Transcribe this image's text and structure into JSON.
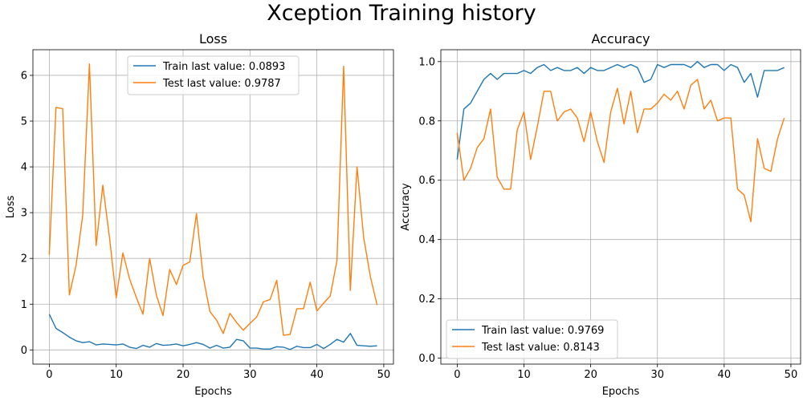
{
  "title": "Xception Training history",
  "chart_data": [
    {
      "type": "line",
      "title": "Loss",
      "xlabel": "Epochs",
      "ylabel": "Loss",
      "xlim": [
        -2.45,
        51.45
      ],
      "ylim": [
        -0.31,
        6.56
      ],
      "xticks": [
        0,
        10,
        20,
        30,
        40,
        50
      ],
      "yticks": [
        0,
        1,
        2,
        3,
        4,
        5,
        6
      ],
      "grid": true,
      "legend": "upper center",
      "x": [
        0,
        1,
        2,
        3,
        4,
        5,
        6,
        7,
        8,
        9,
        10,
        11,
        12,
        13,
        14,
        15,
        16,
        17,
        18,
        19,
        20,
        21,
        22,
        23,
        24,
        25,
        26,
        27,
        28,
        29,
        30,
        31,
        32,
        33,
        34,
        35,
        36,
        37,
        38,
        39,
        40,
        41,
        42,
        43,
        44,
        45,
        46,
        47,
        48,
        49
      ],
      "series": [
        {
          "name": "Train last value: 0.0893",
          "color": "#1f77b4",
          "values": [
            0.78,
            0.47,
            0.38,
            0.28,
            0.2,
            0.16,
            0.18,
            0.11,
            0.13,
            0.12,
            0.11,
            0.13,
            0.06,
            0.03,
            0.1,
            0.06,
            0.14,
            0.1,
            0.11,
            0.13,
            0.09,
            0.12,
            0.16,
            0.12,
            0.04,
            0.1,
            0.04,
            0.06,
            0.23,
            0.2,
            0.04,
            0.04,
            0.02,
            0.02,
            0.07,
            0.06,
            0.01,
            0.08,
            0.05,
            0.05,
            0.12,
            0.03,
            0.12,
            0.23,
            0.17,
            0.36,
            0.1,
            0.09,
            0.08,
            0.09
          ]
        },
        {
          "name": "Test last value: 0.9787",
          "color": "#ff7f0e",
          "values": [
            2.08,
            5.3,
            5.27,
            1.2,
            1.85,
            2.95,
            6.25,
            2.28,
            3.6,
            2.45,
            1.14,
            2.12,
            1.55,
            1.15,
            0.78,
            2.0,
            1.2,
            0.75,
            1.76,
            1.43,
            1.85,
            1.92,
            2.98,
            1.6,
            0.84,
            0.65,
            0.36,
            0.8,
            0.6,
            0.43,
            0.58,
            0.72,
            1.05,
            1.1,
            1.52,
            0.32,
            0.34,
            0.9,
            0.9,
            1.48,
            0.85,
            1.02,
            1.18,
            1.95,
            6.2,
            1.3,
            4.0,
            2.45,
            1.6,
            0.98
          ]
        }
      ]
    },
    {
      "type": "line",
      "title": "Accuracy",
      "xlabel": "Epochs",
      "ylabel": "Accuracy",
      "xlim": [
        -2.45,
        51.45
      ],
      "ylim": [
        -0.02,
        1.04
      ],
      "xticks": [
        0,
        10,
        20,
        30,
        40,
        50
      ],
      "yticks": [
        0.0,
        0.2,
        0.4,
        0.6,
        0.8,
        1.0
      ],
      "grid": true,
      "legend": "lower left",
      "x": [
        0,
        1,
        2,
        3,
        4,
        5,
        6,
        7,
        8,
        9,
        10,
        11,
        12,
        13,
        14,
        15,
        16,
        17,
        18,
        19,
        20,
        21,
        22,
        23,
        24,
        25,
        26,
        27,
        28,
        29,
        30,
        31,
        32,
        33,
        34,
        35,
        36,
        37,
        38,
        39,
        40,
        41,
        42,
        43,
        44,
        45,
        46,
        47,
        48,
        49
      ],
      "series": [
        {
          "name": "Train last value: 0.9769",
          "color": "#1f77b4",
          "values": [
            0.67,
            0.84,
            0.86,
            0.9,
            0.94,
            0.96,
            0.94,
            0.96,
            0.96,
            0.96,
            0.97,
            0.96,
            0.98,
            0.99,
            0.97,
            0.98,
            0.97,
            0.97,
            0.98,
            0.96,
            0.98,
            0.97,
            0.97,
            0.98,
            0.99,
            0.98,
            0.99,
            0.98,
            0.93,
            0.94,
            0.99,
            0.98,
            0.99,
            0.99,
            0.99,
            0.98,
            1.0,
            0.98,
            0.99,
            0.99,
            0.97,
            0.99,
            0.98,
            0.93,
            0.96,
            0.88,
            0.97,
            0.97,
            0.97,
            0.98
          ]
        },
        {
          "name": "Test last value: 0.8143",
          "color": "#ff7f0e",
          "values": [
            0.76,
            0.6,
            0.64,
            0.71,
            0.74,
            0.84,
            0.61,
            0.57,
            0.57,
            0.77,
            0.83,
            0.67,
            0.78,
            0.9,
            0.9,
            0.8,
            0.83,
            0.84,
            0.81,
            0.73,
            0.83,
            0.73,
            0.66,
            0.83,
            0.91,
            0.79,
            0.9,
            0.76,
            0.84,
            0.84,
            0.86,
            0.89,
            0.87,
            0.9,
            0.84,
            0.92,
            0.94,
            0.84,
            0.87,
            0.8,
            0.81,
            0.81,
            0.57,
            0.55,
            0.46,
            0.74,
            0.64,
            0.63,
            0.74,
            0.81
          ]
        }
      ]
    }
  ]
}
